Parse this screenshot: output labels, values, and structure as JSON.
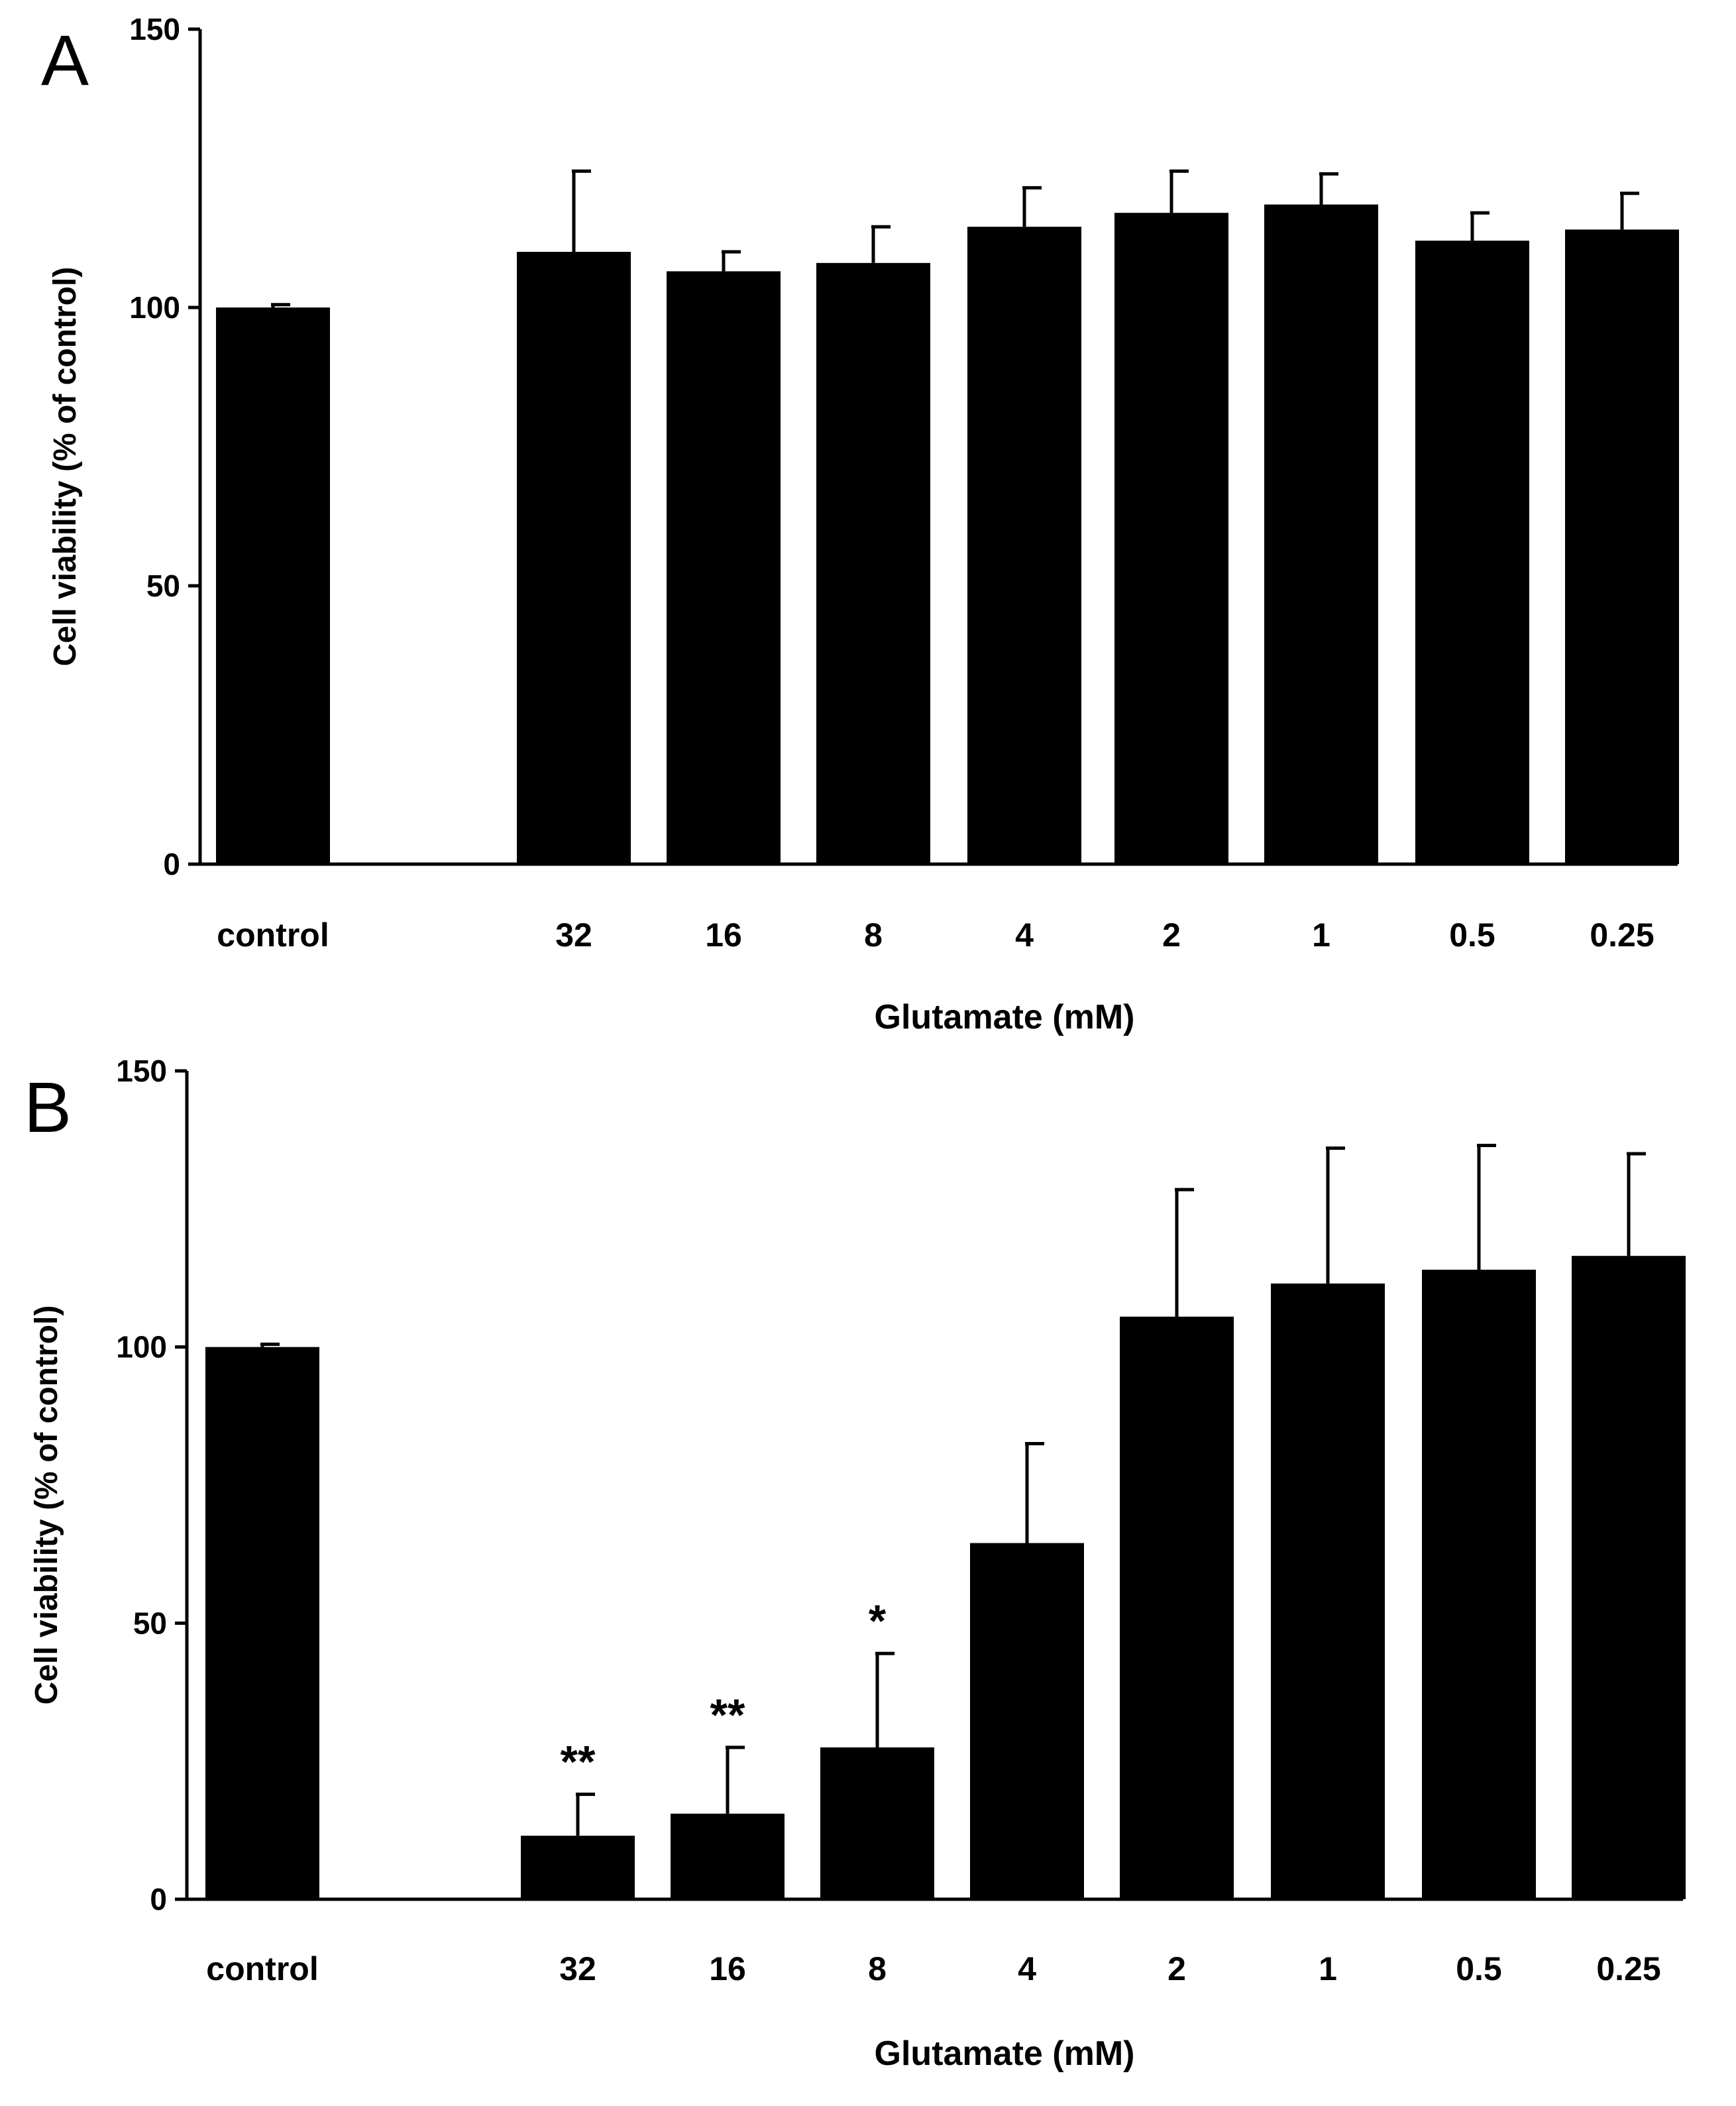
{
  "chart_data": [
    {
      "type": "bar",
      "panel_label": "A",
      "title": "",
      "categories": [
        "control",
        "32",
        "16",
        "8",
        "4",
        "2",
        "1",
        "0.5",
        "0.25"
      ],
      "values": [
        100,
        110,
        106.5,
        108,
        114.5,
        117,
        118.5,
        112,
        114
      ],
      "errors": [
        0.5,
        14.5,
        3.5,
        6.5,
        7,
        7.5,
        5.5,
        5,
        6.5
      ],
      "significance": [
        "",
        "",
        "",
        "",
        "",
        "",
        "",
        "",
        ""
      ],
      "xlabel": "Glutamate (mM)",
      "ylabel": "Cell viability (%  of control)",
      "ylim": [
        0,
        150
      ],
      "yticks": [
        "0",
        "50",
        "100",
        "150"
      ],
      "grid": false,
      "bar_color": "#000000"
    },
    {
      "type": "bar",
      "panel_label": "B",
      "title": "",
      "categories": [
        "control",
        "32",
        "16",
        "8",
        "4",
        "2",
        "1",
        "0.5",
        "0.25"
      ],
      "values": [
        100,
        11.5,
        15.5,
        27.5,
        64.5,
        105.5,
        111.5,
        114,
        116.5
      ],
      "errors": [
        0.5,
        7.5,
        12,
        17,
        18,
        23,
        24.5,
        22.5,
        18.5
      ],
      "significance": [
        "",
        "**",
        "**",
        "*",
        "",
        "",
        "",
        "",
        ""
      ],
      "xlabel": "Glutamate (mM)",
      "ylabel": "Cell viability (%  of control)",
      "ylim": [
        0,
        150
      ],
      "yticks": [
        "0",
        "50",
        "100",
        "150"
      ],
      "grid": false,
      "bar_color": "#000000"
    }
  ]
}
